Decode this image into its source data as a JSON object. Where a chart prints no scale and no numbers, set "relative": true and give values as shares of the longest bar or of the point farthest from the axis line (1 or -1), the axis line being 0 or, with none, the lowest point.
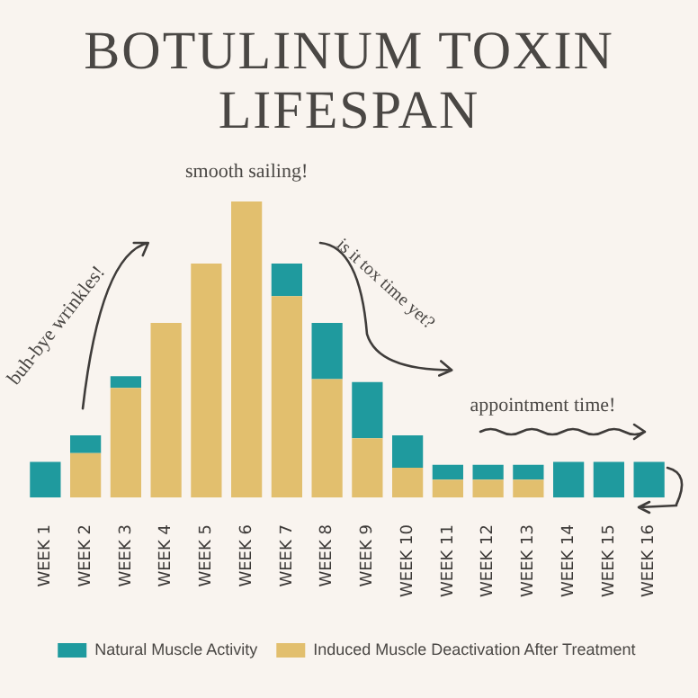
{
  "chart_data": {
    "type": "bar",
    "title": "BOTULINUM TOXIN LIFESPAN",
    "relative": true,
    "stacked": true,
    "grid": false,
    "legend": "bottom",
    "categories": [
      "WEEK 1",
      "WEEK 2",
      "WEEK 3",
      "WEEK 4",
      "WEEK 5",
      "WEEK 6",
      "WEEK 7",
      "WEEK 8",
      "WEEK 9",
      "WEEK 10",
      "WEEK 11",
      "WEEK 12",
      "WEEK 13",
      "WEEK 14",
      "WEEK 15",
      "WEEK 16"
    ],
    "series": [
      {
        "name": "Induced Muscle Deactivation After Treatment",
        "color": "#e2bf6e",
        "values": [
          0,
          0.15,
          0.37,
          0.59,
          0.79,
          1,
          0.68,
          0.4,
          0.2,
          0.1,
          0.06,
          0.06,
          0.06,
          0,
          0,
          0
        ]
      },
      {
        "name": "Natural Muscle Activity",
        "color": "#1f9a9e",
        "values": [
          0.12,
          0.06,
          0.04,
          0,
          0,
          0,
          0.11,
          0.19,
          0.19,
          0.11,
          0.05,
          0.05,
          0.05,
          0.12,
          0.12,
          0.12
        ]
      }
    ],
    "annotations": [
      "buh-bye wrinkles!",
      "smooth sailing!",
      "is it tox time yet?",
      "appointment time!"
    ]
  }
}
